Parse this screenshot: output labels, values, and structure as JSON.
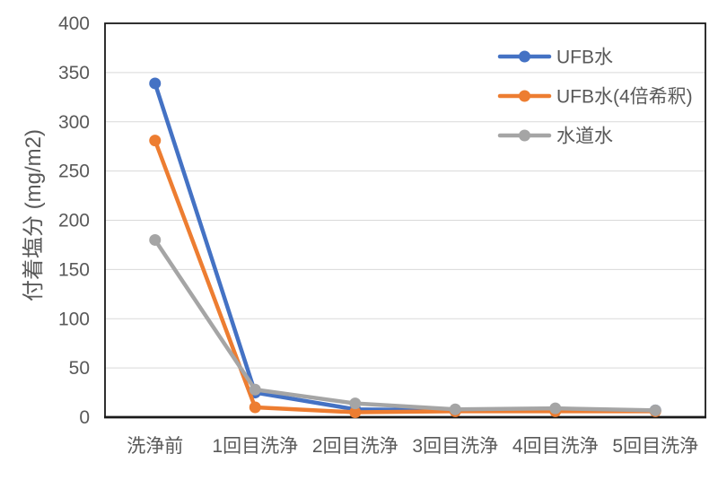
{
  "chart_data": {
    "type": "line",
    "categories": [
      "洗浄前",
      "1回目洗浄",
      "2回目洗浄",
      "3回目洗浄",
      "4回目洗浄",
      "5回目洗浄"
    ],
    "series": [
      {
        "name": "UFB水",
        "color": "#4472C4",
        "values": [
          339,
          25,
          8,
          7,
          7,
          7
        ]
      },
      {
        "name": "UFB水(4倍希釈)",
        "color": "#ED7D31",
        "values": [
          281,
          10,
          5,
          6,
          6,
          6
        ]
      },
      {
        "name": "水道水",
        "color": "#A5A5A5",
        "values": [
          180,
          28,
          14,
          8,
          9,
          7
        ]
      }
    ],
    "ylabel": "付着塩分 (mg/m2)",
    "ylim": [
      0,
      400
    ],
    "yticks": [
      0,
      50,
      100,
      150,
      200,
      250,
      300,
      350,
      400
    ],
    "grid": true,
    "legend_position": "inside-top-right",
    "marker": "circle"
  },
  "styles": {
    "text_color": "#595959",
    "grid_color": "#D9D9D9",
    "axis_color": "#1A1A1A",
    "background": "#FFFFFF"
  }
}
